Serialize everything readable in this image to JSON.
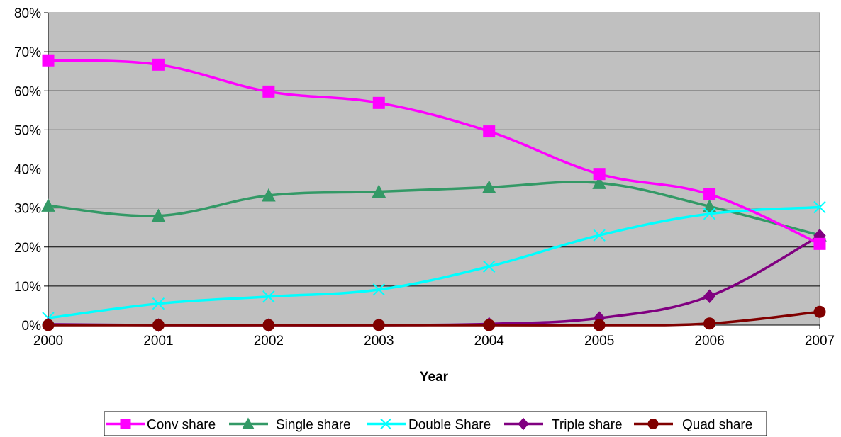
{
  "chart_data": {
    "type": "line",
    "title": "",
    "xlabel": "Year",
    "ylabel": "",
    "x": [
      2000,
      2001,
      2002,
      2003,
      2004,
      2005,
      2006,
      2007
    ],
    "x_tick_labels": [
      "2000",
      "2001",
      "2002",
      "2003",
      "2004",
      "2005",
      "2006",
      "2007"
    ],
    "y_tick_labels": [
      "0%",
      "10%",
      "20%",
      "30%",
      "40%",
      "50%",
      "60%",
      "70%",
      "80%"
    ],
    "ylim": [
      0,
      80
    ],
    "y_unit": "%",
    "grid": true,
    "legend_position": "bottom",
    "plot_background": "#c0c0c0",
    "series": [
      {
        "name": "Conv share",
        "color": "#ff00ff",
        "marker": "square",
        "values": [
          67.8,
          66.7,
          59.8,
          56.9,
          49.6,
          38.7,
          33.5,
          20.8
        ]
      },
      {
        "name": "Single share",
        "color": "#339966",
        "marker": "triangle",
        "values": [
          30.6,
          28.0,
          33.2,
          34.2,
          35.3,
          36.4,
          30.4,
          23.0
        ]
      },
      {
        "name": "Double Share",
        "color": "#00ffff",
        "marker": "x",
        "values": [
          1.8,
          5.5,
          7.3,
          9.1,
          15.0,
          23.0,
          28.5,
          30.2
        ]
      },
      {
        "name": "Triple share",
        "color": "#800080",
        "marker": "diamond",
        "values": [
          0.2,
          0.0,
          0.0,
          0.0,
          0.3,
          1.8,
          7.4,
          22.9
        ]
      },
      {
        "name": "Quad share",
        "color": "#800000",
        "marker": "circle",
        "values": [
          0.0,
          0.0,
          0.0,
          0.0,
          0.0,
          0.0,
          0.4,
          3.4
        ]
      }
    ]
  }
}
